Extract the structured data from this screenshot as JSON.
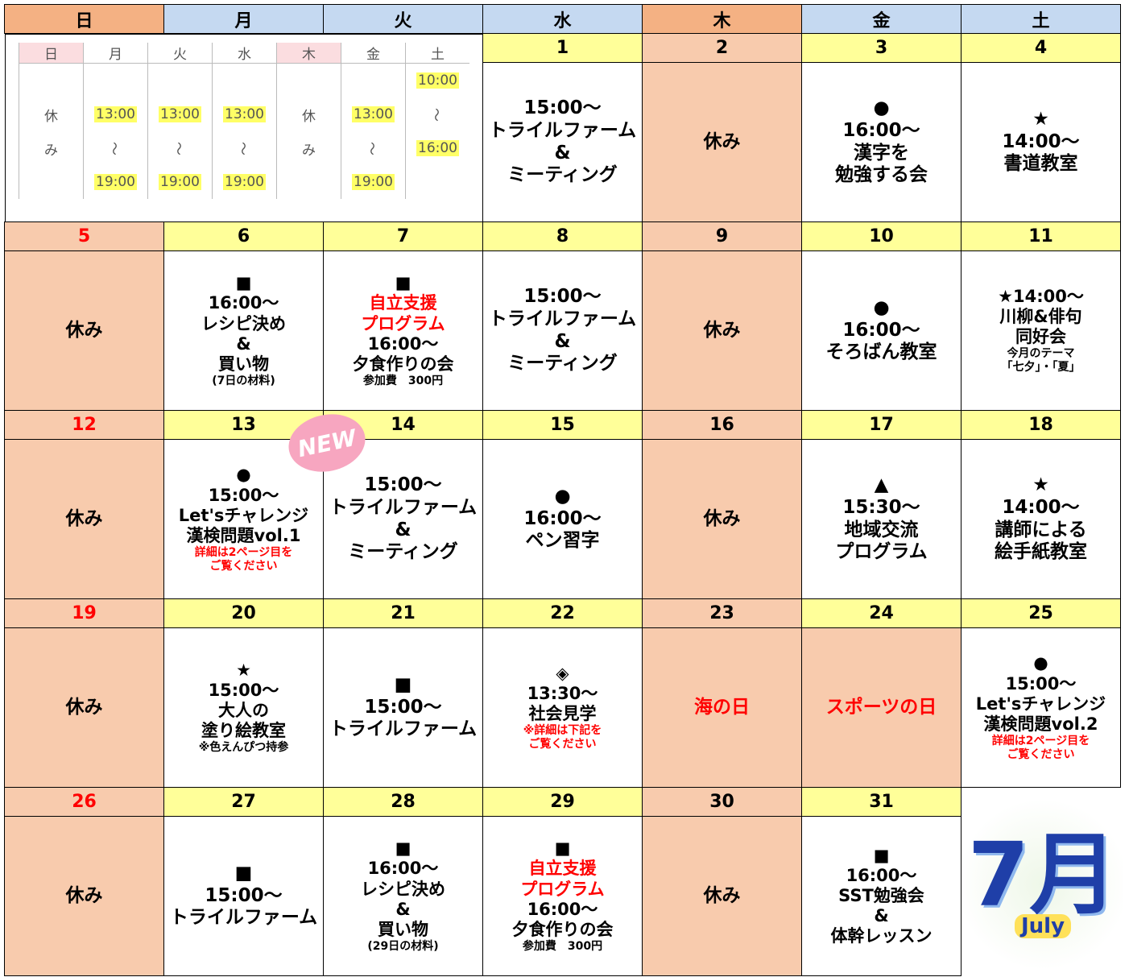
{
  "header": [
    "日",
    "月",
    "火",
    "水",
    "木",
    "金",
    "土"
  ],
  "inset": {
    "header": [
      "日",
      "月",
      "火",
      "水",
      "木",
      "金",
      "土"
    ],
    "columns": [
      [
        "休",
        "み"
      ],
      [
        "13:00",
        "～",
        "19:00"
      ],
      [
        "13:00",
        "～",
        "19:00"
      ],
      [
        "13:00",
        "～",
        "19:00"
      ],
      [
        "休",
        "み"
      ],
      [
        "13:00",
        "～",
        "19:00"
      ],
      [
        "10:00",
        "～",
        "16:00"
      ]
    ]
  },
  "weeks": [
    [
      null,
      null,
      null,
      {
        "date": "1",
        "lines": [
          "15:00～",
          "トライルファーム",
          "&",
          "ミーティング"
        ]
      },
      {
        "date": "2",
        "color": "#f8cbad",
        "lines": [
          "休み"
        ]
      },
      {
        "date": "3",
        "lines": [
          "●",
          "16:00～",
          "漢字を",
          "勉強する会"
        ]
      },
      {
        "date": "4",
        "lines": [
          "★",
          "14:00～",
          "書道教室"
        ]
      }
    ],
    [
      {
        "date": "5",
        "color": "#f8cbad",
        "lines": [
          "休み"
        ]
      },
      {
        "date": "6",
        "lines": [
          "■",
          "16:00～",
          "レシピ決め",
          "&",
          "買い物"
        ],
        "notes": [
          "(7日の材料)"
        ]
      },
      {
        "date": "7",
        "lines": [
          "■",
          {
            "text": "自立支援",
            "color": "#ff0000"
          },
          {
            "text": "プログラム",
            "color": "#ff0000"
          },
          "16:00～",
          "夕食作りの会"
        ],
        "notes": [
          "参加費　300円"
        ]
      },
      {
        "date": "8",
        "lines": [
          "15:00～",
          "トライルファーム",
          "&",
          "ミーティング"
        ]
      },
      {
        "date": "9",
        "color": "#f8cbad",
        "lines": [
          "休み"
        ]
      },
      {
        "date": "10",
        "lines": [
          "●",
          "16:00～",
          "そろばん教室"
        ]
      },
      {
        "date": "11",
        "lines": [
          "★14:00～",
          "川柳&俳句",
          "同好会"
        ],
        "notes": [
          "今月のテーマ",
          "「七夕」・「夏」"
        ]
      }
    ],
    [
      {
        "date": "12",
        "color": "#f8cbad",
        "lines": [
          "休み"
        ]
      },
      {
        "date": "13",
        "lines": [
          "●",
          "15:00～",
          "Let'sチャレンジ",
          "漢検問題vol.1"
        ],
        "notes": [
          {
            "text": "詳細は2ページ目を",
            "color": "#ff0000"
          },
          {
            "text": "ご覧ください",
            "color": "#ff0000"
          }
        ]
      },
      {
        "date": "14",
        "lines": [
          "15:00～",
          "トライルファーム",
          "&",
          "ミーティング"
        ]
      },
      {
        "date": "15",
        "lines": [
          "●",
          "16:00～",
          "ペン習字"
        ]
      },
      {
        "date": "16",
        "color": "#f8cbad",
        "lines": [
          "休み"
        ]
      },
      {
        "date": "17",
        "lines": [
          "▲",
          "15:30～",
          "地域交流",
          "プログラム"
        ]
      },
      {
        "date": "18",
        "lines": [
          "★",
          "14:00～",
          "講師による",
          "絵手紙教室"
        ]
      }
    ],
    [
      {
        "date": "19",
        "color": "#f8cbad",
        "lines": [
          "休み"
        ]
      },
      {
        "date": "20",
        "lines": [
          "★",
          "15:00～",
          "大人の",
          "塗り絵教室"
        ],
        "notes": [
          "※色えんぴつ持参"
        ]
      },
      {
        "date": "21",
        "lines": [
          "■",
          "15:00～",
          "トライルファーム"
        ]
      },
      {
        "date": "22",
        "lines": [
          "◈",
          "13:30～",
          "社会見学"
        ],
        "notes": [
          {
            "text": "※詳細は下記を",
            "color": "#ff0000"
          },
          {
            "text": "ご覧ください",
            "color": "#ff0000"
          }
        ]
      },
      {
        "date": "23",
        "color": "#f8cbad",
        "lines": [
          {
            "text": "海の日",
            "color": "#ff0000"
          }
        ]
      },
      {
        "date": "24",
        "color": "#f8cbad",
        "lines": [
          {
            "text": "スポーツの日",
            "color": "#ff0000"
          }
        ]
      },
      {
        "date": "25",
        "lines": [
          "●",
          "15:00～",
          "Let'sチャレンジ",
          "漢検問題vol.2"
        ],
        "notes": [
          {
            "text": "詳細は2ページ目を",
            "color": "#ff0000"
          },
          {
            "text": "ご覧ください",
            "color": "#ff0000"
          }
        ]
      }
    ],
    [
      {
        "date": "26",
        "color": "#f8cbad",
        "lines": [
          "休み"
        ]
      },
      {
        "date": "27",
        "lines": [
          "■",
          "15:00～",
          "トライルファーム"
        ]
      },
      {
        "date": "28",
        "lines": [
          "■",
          "16:00～",
          "レシピ決め",
          "&",
          "買い物"
        ],
        "notes": [
          "(29日の材料)"
        ]
      },
      {
        "date": "29",
        "lines": [
          "■",
          {
            "text": "自立支援",
            "color": "#ff0000"
          },
          {
            "text": "プログラム",
            "color": "#ff0000"
          },
          "16:00～",
          "夕食作りの会"
        ],
        "notes": [
          "参加費　300円"
        ]
      },
      {
        "date": "30",
        "color": "#f8cbad",
        "lines": [
          "休み"
        ]
      },
      {
        "date": "31",
        "lines": [
          "■",
          "16:00～",
          "SST勉強会",
          "&",
          "体幹レッスン"
        ]
      },
      null
    ]
  ],
  "badge": "NEW",
  "decoration": {
    "title": "7月",
    "subtitle": "July"
  }
}
